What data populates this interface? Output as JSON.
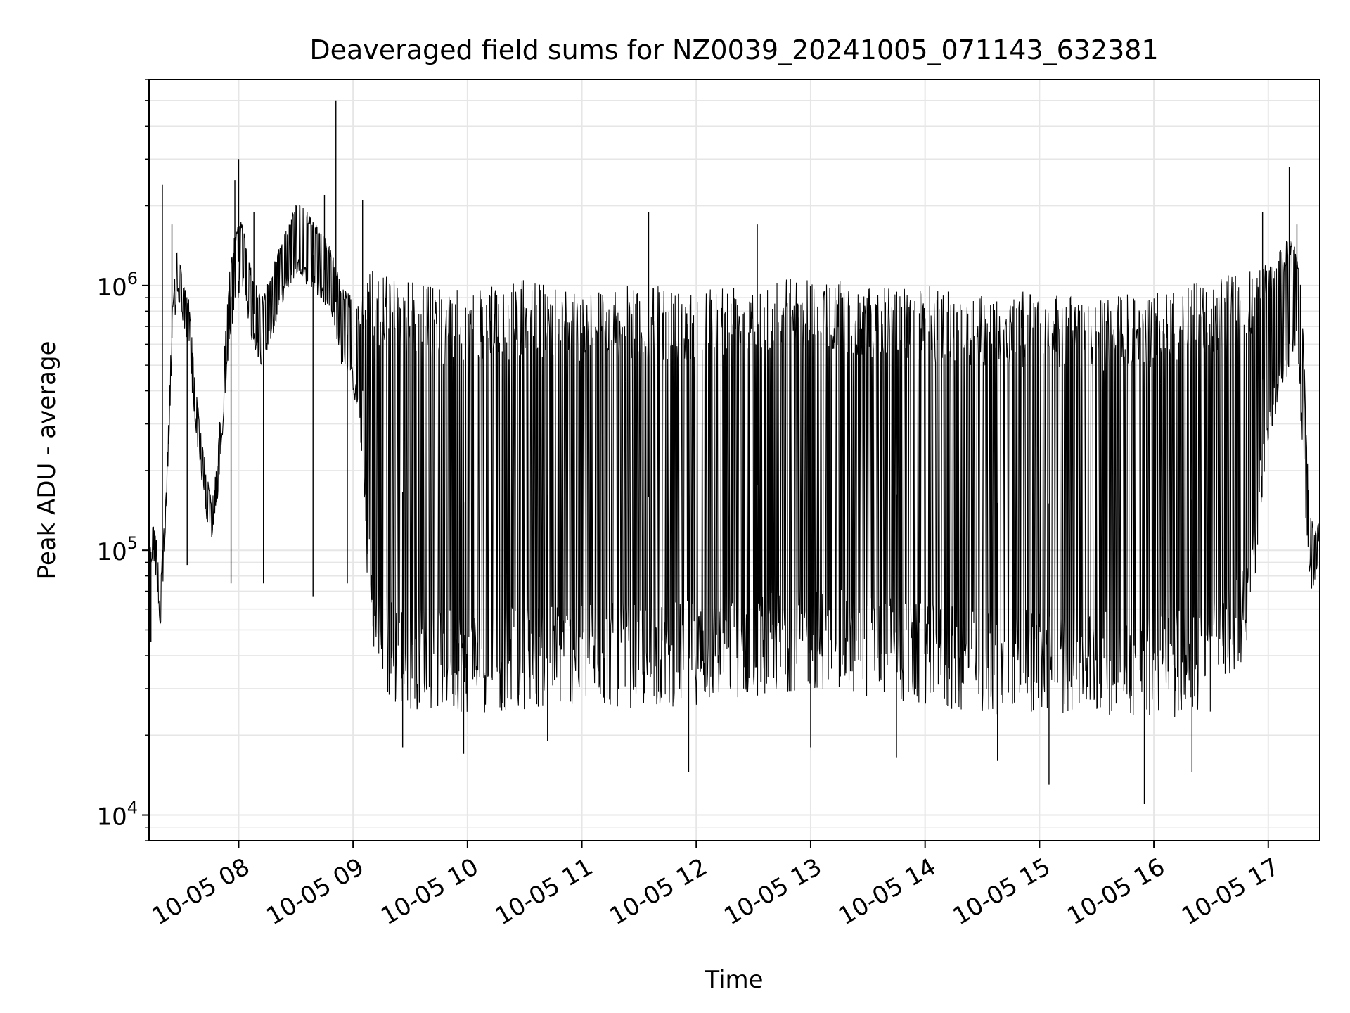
{
  "chart_data": {
    "type": "line",
    "title": "Deaveraged field sums for NZ0039_20241005_071143_632381",
    "xlabel": "Time",
    "ylabel": "Peak ADU - average",
    "yscale": "log",
    "ylim": [
      8000,
      6000000
    ],
    "xlim": [
      "2024-10-05 07:13",
      "2024-10-05 17:27"
    ],
    "grid": true,
    "line_color": "#000000",
    "x_tick_labels": [
      "10-05 08",
      "10-05 09",
      "10-05 10",
      "10-05 11",
      "10-05 12",
      "10-05 13",
      "10-05 14",
      "10-05 15",
      "10-05 16",
      "10-05 17"
    ],
    "y_tick_labels": [
      {
        "base": "10",
        "exp": "4",
        "value": 10000
      },
      {
        "base": "10",
        "exp": "5",
        "value": 100000
      },
      {
        "base": "10",
        "exp": "6",
        "value": 1000000
      }
    ],
    "series": [
      {
        "x": [
          "07:13",
          "07:15",
          "07:17",
          "07:19",
          "07:22",
          "07:25",
          "07:28",
          "07:31",
          "07:34",
          "07:37",
          "07:40",
          "07:43",
          "07:46",
          "07:49",
          "07:52",
          "07:55",
          "07:58",
          "08:02",
          "08:07",
          "08:12",
          "08:18",
          "08:24",
          "08:30",
          "08:36",
          "08:42",
          "08:48",
          "08:54",
          "09:00",
          "09:04",
          "09:06",
          "09:08",
          "09:10",
          "09:12",
          "09:14",
          "09:16",
          "09:18",
          "09:20",
          "09:25",
          "09:40",
          "10:00",
          "10:30",
          "11:00",
          "11:30",
          "12:00",
          "12:30",
          "13:00",
          "13:30",
          "14:00",
          "14:30",
          "15:00",
          "15:30",
          "16:00",
          "16:30",
          "16:50",
          "16:58",
          "17:03",
          "17:08",
          "17:12",
          "17:15",
          "17:17",
          "17:19",
          "17:21",
          "17:23",
          "17:25",
          "17:27"
        ],
        "upper": [
          95000,
          130000,
          110000,
          75000,
          170000,
          800000,
          1500000,
          1000000,
          900000,
          450000,
          300000,
          200000,
          150000,
          230000,
          500000,
          1100000,
          1600000,
          1800000,
          1100000,
          900000,
          1200000,
          1600000,
          2100000,
          1900000,
          1700000,
          1400000,
          1000000,
          900000,
          850000,
          1000000,
          1300000,
          1200000,
          1100000,
          1000000,
          1150000,
          1200000,
          1150000,
          1100000,
          1000000,
          950000,
          1050000,
          1000000,
          1000000,
          1000000,
          1100000,
          1100000,
          1000000,
          1000000,
          950000,
          950000,
          900000,
          950000,
          1050000,
          1150000,
          1200000,
          1300000,
          1400000,
          1600000,
          1300000,
          1100000,
          500000,
          180000,
          130000,
          120000,
          135000
        ],
        "lower": [
          80000,
          95000,
          75000,
          50000,
          130000,
          500000,
          900000,
          700000,
          550000,
          300000,
          200000,
          130000,
          110000,
          150000,
          300000,
          600000,
          800000,
          1000000,
          600000,
          500000,
          650000,
          900000,
          1100000,
          1000000,
          900000,
          800000,
          500000,
          400000,
          250000,
          120000,
          65000,
          40000,
          32000,
          30000,
          28000,
          27000,
          26000,
          25000,
          25000,
          24000,
          25000,
          26000,
          25000,
          26000,
          28000,
          30000,
          28000,
          25000,
          24000,
          24000,
          24000,
          23000,
          24000,
          40000,
          200000,
          300000,
          400000,
          500000,
          600000,
          300000,
          150000,
          80000,
          70000,
          80000,
          110000
        ]
      }
    ],
    "spikes": {
      "high": [
        {
          "x": "07:20",
          "y": 2400000
        },
        {
          "x": "07:25",
          "y": 1700000
        },
        {
          "x": "07:58",
          "y": 2500000
        },
        {
          "x": "08:00",
          "y": 3000000
        },
        {
          "x": "08:08",
          "y": 1900000
        },
        {
          "x": "08:45",
          "y": 2200000
        },
        {
          "x": "08:51",
          "y": 5000000
        },
        {
          "x": "09:05",
          "y": 2100000
        },
        {
          "x": "11:35",
          "y": 1900000
        },
        {
          "x": "12:32",
          "y": 1700000
        },
        {
          "x": "16:57",
          "y": 1900000
        },
        {
          "x": "17:11",
          "y": 2800000
        },
        {
          "x": "17:15",
          "y": 1700000
        }
      ],
      "low": [
        {
          "x": "07:14",
          "y": 45000
        },
        {
          "x": "07:33",
          "y": 88000
        },
        {
          "x": "07:56",
          "y": 75000
        },
        {
          "x": "08:13",
          "y": 75000
        },
        {
          "x": "08:39",
          "y": 67000
        },
        {
          "x": "08:57",
          "y": 75000
        },
        {
          "x": "09:26",
          "y": 18000
        },
        {
          "x": "09:58",
          "y": 17000
        },
        {
          "x": "10:42",
          "y": 19000
        },
        {
          "x": "11:56",
          "y": 14500
        },
        {
          "x": "13:00",
          "y": 18000
        },
        {
          "x": "13:45",
          "y": 16500
        },
        {
          "x": "14:38",
          "y": 16000
        },
        {
          "x": "15:05",
          "y": 13000
        },
        {
          "x": "15:55",
          "y": 11000
        },
        {
          "x": "16:20",
          "y": 14500
        }
      ]
    }
  }
}
